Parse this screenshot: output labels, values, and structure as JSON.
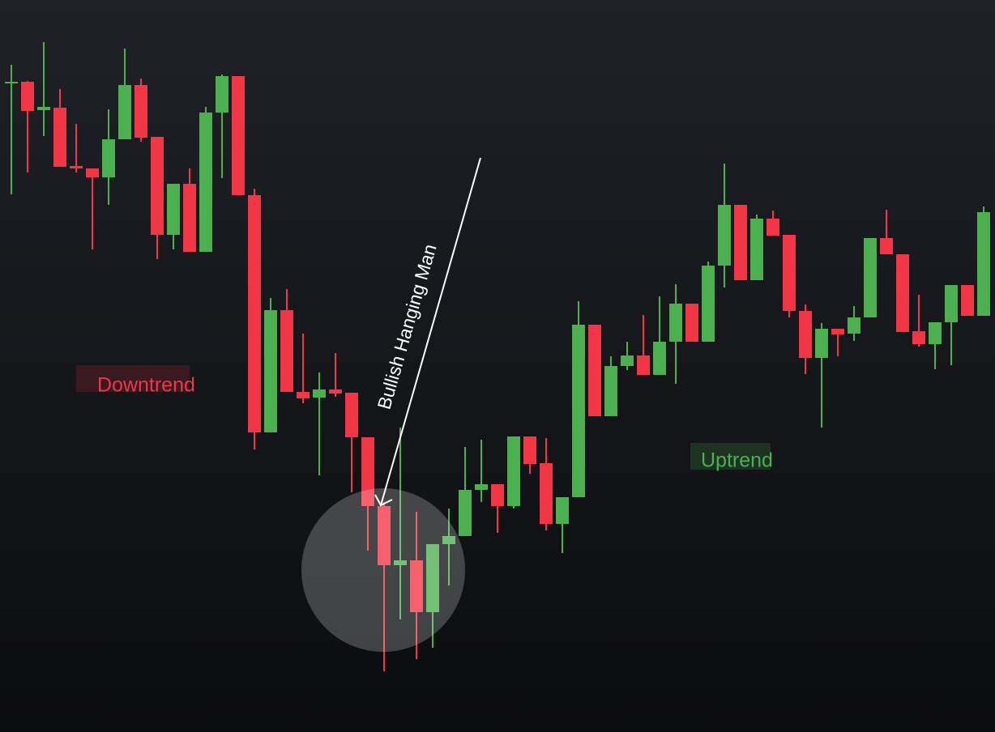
{
  "chart_data": {
    "type": "candlestick",
    "annotations": [
      "Downtrend",
      "Uptrend",
      "Bullish Hanging Man"
    ],
    "open": [
      801,
      803,
      768,
      771,
      699,
      696,
      685,
      732,
      799,
      735,
      614,
      677,
      593,
      765,
      810,
      663,
      370,
      521,
      420,
      413,
      423,
      419,
      364,
      279,
      206,
      212,
      148,
      232,
      242,
      299,
      306,
      279,
      365,
      332,
      257,
      290,
      503,
      390,
      452,
      465,
      441,
      482,
      529,
      482,
      576,
      651,
      558,
      634,
      614,
      520,
      462,
      498,
      492,
      512,
      610,
      590,
      495,
      479,
      506,
      552,
      514
    ],
    "high": [
      824,
      804,
      852,
      794,
      751,
      696,
      769,
      844,
      807,
      735,
      677,
      696,
      772,
      812,
      810,
      671,
      536,
      547,
      492,
      444,
      468,
      419,
      364,
      284,
      376,
      272,
      232,
      276,
      352,
      361,
      306,
      365,
      365,
      363,
      290,
      532,
      503,
      464,
      482,
      515,
      538,
      553,
      529,
      581,
      702,
      651,
      639,
      644,
      614,
      528,
      505,
      498,
      526,
      610,
      645,
      590,
      540,
      506,
      552,
      552,
      649
    ],
    "low": [
      664,
      691,
      736,
      698,
      691,
      596,
      651,
      732,
      729,
      584,
      596,
      593,
      593,
      684,
      663,
      349,
      370,
      420,
      406,
      317,
      414,
      296,
      224,
      75,
      139,
      90,
      104,
      181,
      242,
      284,
      246,
      276,
      319,
      249,
      221,
      290,
      390,
      390,
      447,
      441,
      441,
      430,
      482,
      482,
      549,
      558,
      558,
      613,
      512,
      442,
      376,
      464,
      483,
      512,
      590,
      494,
      476,
      448,
      453,
      514,
      514
    ],
    "close": [
      803,
      767,
      772,
      698,
      696,
      685,
      732,
      799,
      734,
      614,
      677,
      593,
      765,
      810,
      663,
      370,
      521,
      420,
      412,
      423,
      418,
      364,
      279,
      206,
      212,
      148,
      232,
      242,
      299,
      306,
      279,
      365,
      331,
      257,
      290,
      503,
      390,
      452,
      465,
      441,
      482,
      529,
      482,
      576,
      651,
      558,
      634,
      613,
      520,
      462,
      498,
      491,
      512,
      610,
      590,
      494,
      479,
      506,
      552,
      514,
      642
    ],
    "up_color": "#4caf50",
    "down_color": "#f23645",
    "ylim": [
      0,
      904
    ]
  }
}
